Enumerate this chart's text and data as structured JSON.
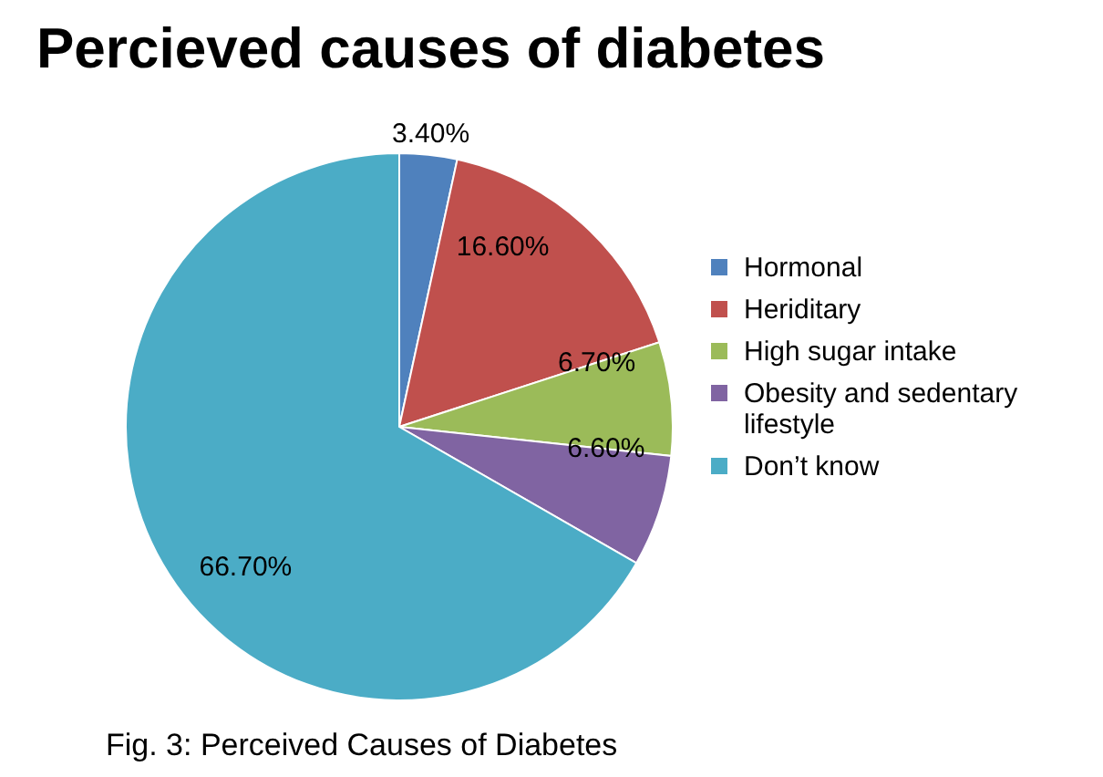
{
  "chart_data": {
    "type": "pie",
    "title": "Percieved causes of diabetes",
    "categories": [
      "Hormonal",
      "Heriditary",
      "High sugar intake",
      "Obesity and sedentary lifestyle",
      "Don’t know"
    ],
    "values": [
      3.4,
      16.6,
      6.7,
      6.6,
      66.7
    ],
    "colors": [
      "#4f81bd",
      "#c0504d",
      "#9bbb59",
      "#8064a2",
      "#4bacc6"
    ],
    "value_labels": [
      "3.40%",
      "16.60%",
      "6.70%",
      "6.60%",
      "66.70%"
    ],
    "legend": "right",
    "annotations": [
      "Fig. 3: Perceived Causes of Diabetes"
    ]
  }
}
